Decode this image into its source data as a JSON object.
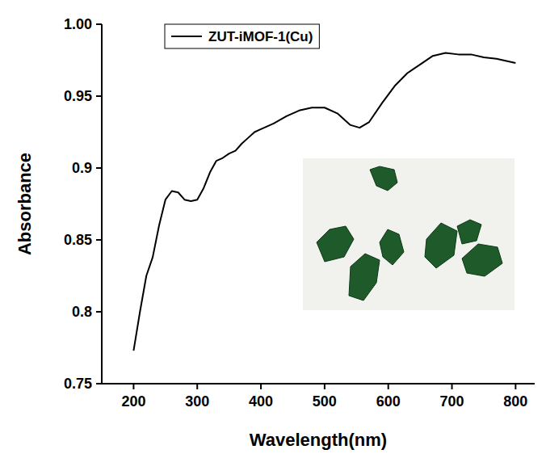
{
  "chart_data": {
    "type": "line",
    "x_label": "Wavelength(nm)",
    "y_label": "Absorbance",
    "xlim": [
      150,
      830
    ],
    "ylim": [
      0.75,
      1.0
    ],
    "xticks": [
      200,
      300,
      400,
      500,
      600,
      700,
      800
    ],
    "yticks": [
      0.75,
      0.8,
      0.85,
      0.9,
      0.95,
      {
        "value": 1.0,
        "label": "1.00"
      }
    ],
    "legend": "upper left",
    "grid": false,
    "x": [
      200,
      210,
      220,
      230,
      240,
      250,
      260,
      270,
      280,
      290,
      300,
      310,
      320,
      330,
      340,
      350,
      360,
      370,
      380,
      390,
      400,
      420,
      440,
      460,
      480,
      500,
      520,
      540,
      555,
      570,
      590,
      610,
      630,
      650,
      670,
      690,
      710,
      730,
      750,
      770,
      800
    ],
    "series": [
      {
        "name": "ZUT-iMOF-1(Cu)",
        "color": "#000000",
        "line_style": "solid",
        "values": [
          0.773,
          0.8,
          0.825,
          0.838,
          0.86,
          0.878,
          0.884,
          0.883,
          0.878,
          0.877,
          0.878,
          0.886,
          0.897,
          0.905,
          0.907,
          0.91,
          0.912,
          0.917,
          0.921,
          0.925,
          0.927,
          0.931,
          0.936,
          0.94,
          0.942,
          0.942,
          0.938,
          0.93,
          0.928,
          0.932,
          0.945,
          0.957,
          0.966,
          0.972,
          0.978,
          0.98,
          0.979,
          0.979,
          0.977,
          0.976,
          0.973
        ]
      }
    ]
  }
}
